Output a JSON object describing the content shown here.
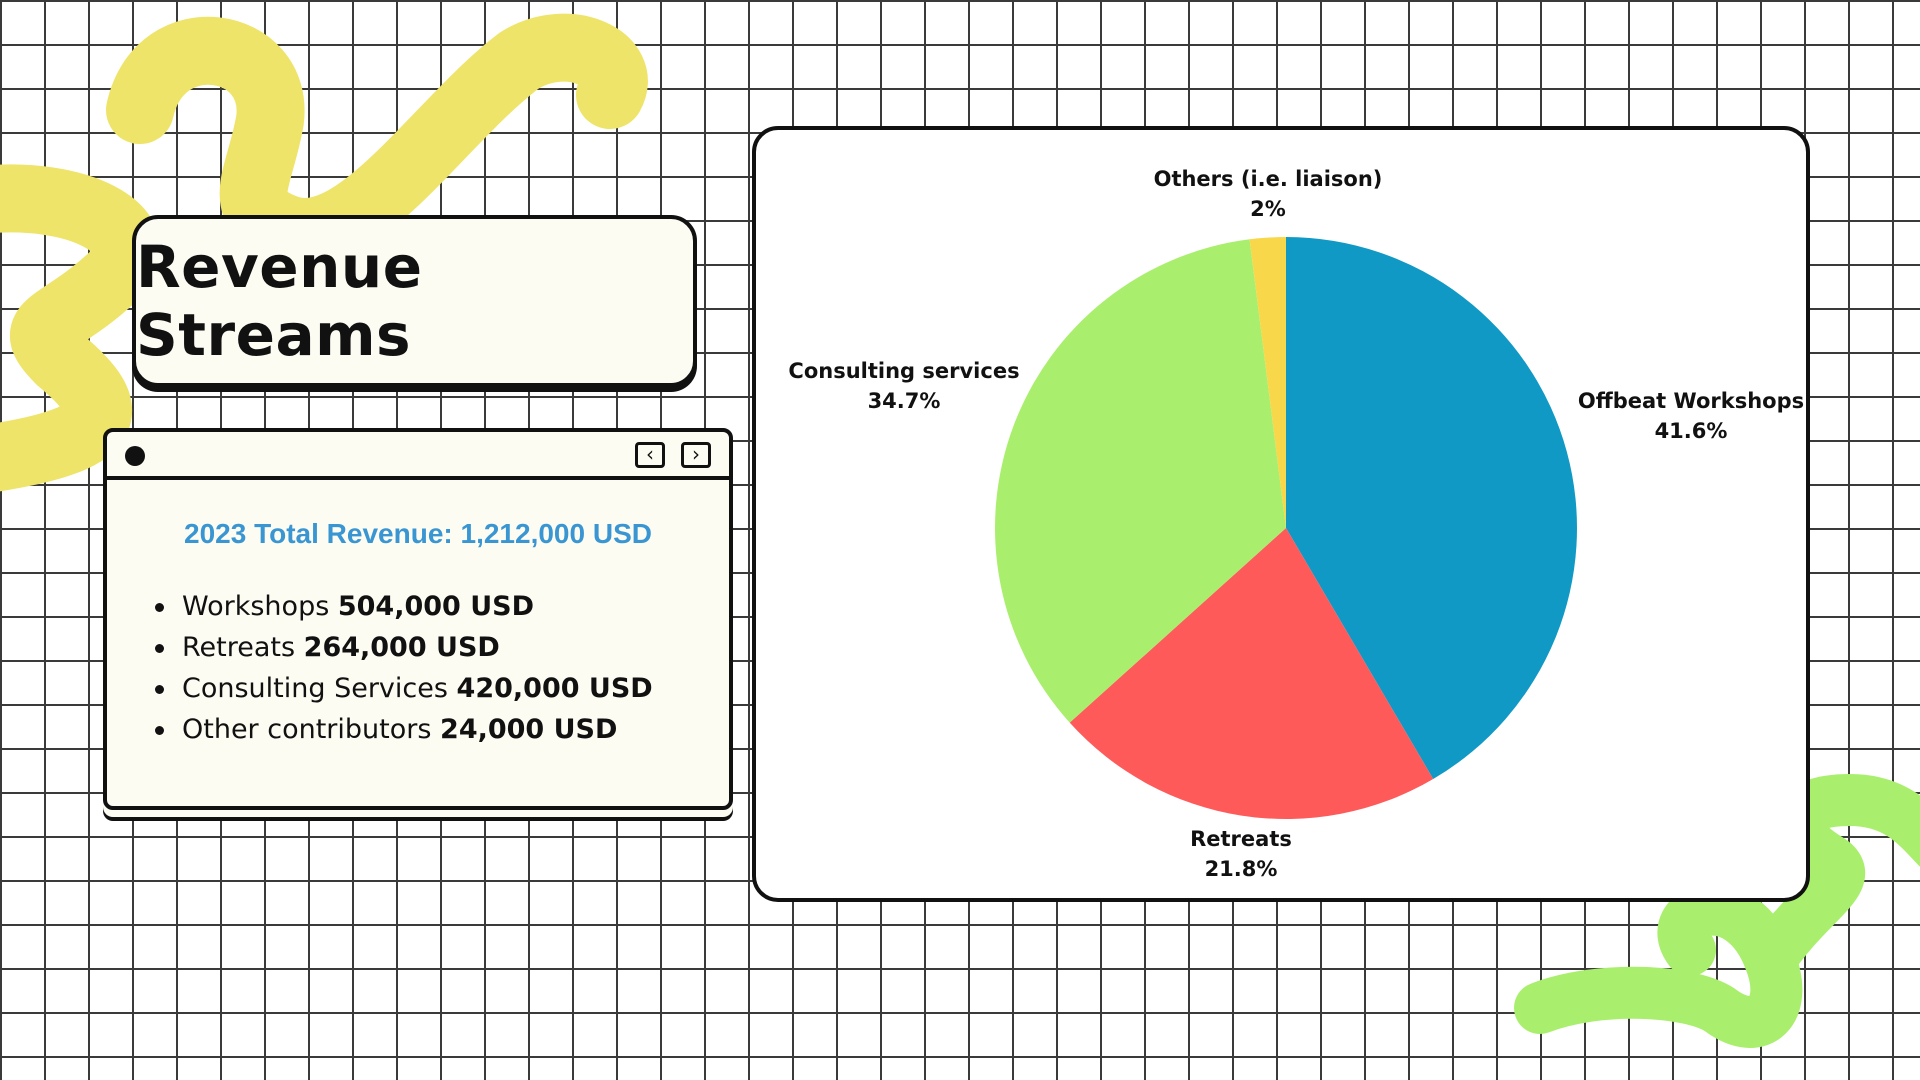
{
  "title": "Revenue Streams",
  "summary": {
    "total": "2023 Total Revenue: 1,212,000 USD",
    "items": [
      {
        "name": "Workshops ",
        "value": "504,000 USD"
      },
      {
        "name": "Retreats",
        "value": "264,000 USD"
      },
      {
        "name": "Consulting Services",
        "value": "420,000 USD"
      },
      {
        "name": "Other contributors",
        "value": "24,000 USD"
      }
    ]
  },
  "window": {
    "prev_glyph": "‹",
    "next_glyph": "›"
  },
  "colors": {
    "accent_text": "#3a96d2",
    "deco_yellow": "#eee46a",
    "deco_green": "#a9ef6d"
  },
  "chart_data": {
    "type": "pie",
    "slices": [
      {
        "label": "Offbeat Workshops",
        "value": 41.6,
        "display": "41.6%",
        "color": "#1199c6"
      },
      {
        "label": "Retreats",
        "value": 21.8,
        "display": "21.8%",
        "color": "#ff5a5a"
      },
      {
        "label": "Consulting services",
        "value": 34.7,
        "display": "34.7%",
        "color": "#a9ef6d"
      },
      {
        "label": "Others (i.e. liaison)",
        "value": 2,
        "display": "2%",
        "color": "#f8d84a"
      }
    ],
    "start": "12 o'clock",
    "direction": "clockwise",
    "legend": "none"
  }
}
